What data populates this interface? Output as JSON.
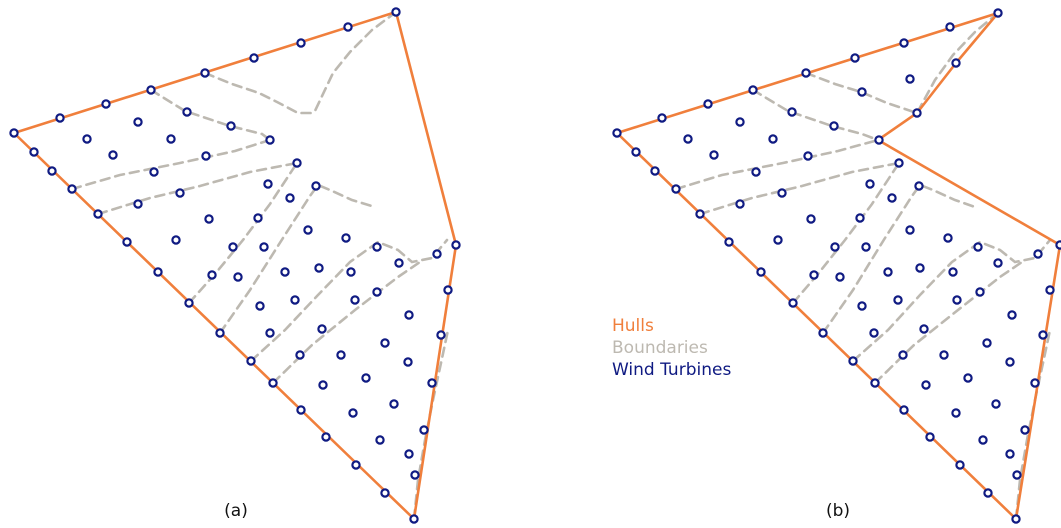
{
  "colors": {
    "hull": "#f07f3c",
    "boundary": "#bdb9b1",
    "turbine": "#0f1a82",
    "caption": "#111111"
  },
  "legend": {
    "hulls": "Hulls",
    "boundaries": "Boundaries",
    "wind_turbines": "Wind Turbines"
  },
  "panels": [
    {
      "caption": "(a)",
      "hull": [
        [
          14,
          133
        ],
        [
          396,
          12
        ],
        [
          456,
          245
        ],
        [
          414,
          519
        ],
        [
          14,
          133
        ]
      ],
      "hull_turbines": [
        [
          14,
          133
        ],
        [
          34,
          152
        ],
        [
          52,
          171
        ],
        [
          72,
          189
        ],
        [
          98,
          214
        ],
        [
          127,
          242
        ],
        [
          158,
          272
        ],
        [
          189,
          303
        ],
        [
          220,
          333
        ],
        [
          251,
          361
        ],
        [
          273,
          383
        ],
        [
          301,
          410
        ],
        [
          326,
          437
        ],
        [
          356,
          465
        ],
        [
          385,
          493
        ],
        [
          414,
          519
        ],
        [
          60,
          118
        ],
        [
          106,
          104
        ],
        [
          151,
          90
        ],
        [
          205,
          73
        ],
        [
          254,
          58
        ],
        [
          301,
          43
        ],
        [
          348,
          27
        ],
        [
          396,
          12
        ],
        [
          456,
          245
        ],
        [
          448,
          290
        ],
        [
          441,
          335
        ],
        [
          432,
          383
        ],
        [
          424,
          430
        ],
        [
          415,
          475
        ]
      ],
      "interior_turbines": [
        [
          87,
          139
        ],
        [
          138,
          122
        ],
        [
          113,
          155
        ],
        [
          187,
          112
        ],
        [
          231,
          126
        ],
        [
          171,
          139
        ],
        [
          206,
          156
        ],
        [
          154,
          172
        ],
        [
          270,
          140
        ],
        [
          180,
          193
        ],
        [
          138,
          204
        ],
        [
          268,
          184
        ],
        [
          297,
          163
        ],
        [
          209,
          219
        ],
        [
          176,
          240
        ],
        [
          258,
          218
        ],
        [
          290,
          198
        ],
        [
          316,
          186
        ],
        [
          233,
          247
        ],
        [
          212,
          275
        ],
        [
          264,
          247
        ],
        [
          238,
          277
        ],
        [
          308,
          230
        ],
        [
          260,
          306
        ],
        [
          285,
          272
        ],
        [
          346,
          238
        ],
        [
          319,
          268
        ],
        [
          377,
          247
        ],
        [
          399,
          263
        ],
        [
          437,
          254
        ],
        [
          295,
          300
        ],
        [
          351,
          272
        ],
        [
          377,
          292
        ],
        [
          322,
          329
        ],
        [
          355,
          300
        ],
        [
          409,
          315
        ],
        [
          300,
          355
        ],
        [
          341,
          355
        ],
        [
          385,
          343
        ],
        [
          270,
          333
        ],
        [
          323,
          385
        ],
        [
          366,
          378
        ],
        [
          408,
          362
        ],
        [
          353,
          413
        ],
        [
          394,
          404
        ],
        [
          380,
          440
        ],
        [
          409,
          454
        ]
      ],
      "boundaries": [
        [
          [
            396,
            12
          ],
          [
            372,
            30
          ],
          [
            350,
            52
          ],
          [
            333,
            73
          ],
          [
            314,
            113
          ]
        ],
        [
          [
            205,
            73
          ],
          [
            232,
            84
          ],
          [
            259,
            93
          ],
          [
            279,
            103
          ],
          [
            298,
            113
          ],
          [
            314,
            113
          ]
        ],
        [
          [
            151,
            90
          ],
          [
            185,
            111
          ],
          [
            230,
            126
          ],
          [
            262,
            134
          ],
          [
            270,
            140
          ]
        ],
        [
          [
            72,
            189
          ],
          [
            120,
            175
          ],
          [
            180,
            163
          ],
          [
            235,
            151
          ],
          [
            270,
            140
          ]
        ],
        [
          [
            98,
            214
          ],
          [
            150,
            198
          ],
          [
            200,
            186
          ],
          [
            250,
            172
          ],
          [
            297,
            163
          ]
        ],
        [
          [
            189,
            303
          ],
          [
            215,
            274
          ],
          [
            243,
            240
          ],
          [
            270,
            204
          ],
          [
            297,
            163
          ]
        ],
        [
          [
            220,
            333
          ],
          [
            250,
            290
          ],
          [
            283,
            238
          ],
          [
            310,
            196
          ],
          [
            318,
            185
          ],
          [
            330,
            190
          ],
          [
            352,
            200
          ],
          [
            375,
            207
          ]
        ],
        [
          [
            251,
            361
          ],
          [
            285,
            330
          ],
          [
            318,
            295
          ],
          [
            350,
            262
          ],
          [
            378,
            242
          ],
          [
            398,
            250
          ],
          [
            412,
            262
          ],
          [
            432,
            258
          ],
          [
            447,
            240
          ]
        ],
        [
          [
            273,
            383
          ],
          [
            312,
            345
          ],
          [
            355,
            310
          ],
          [
            398,
            277
          ],
          [
            420,
            262
          ]
        ],
        [
          [
            414,
            519
          ],
          [
            418,
            480
          ],
          [
            425,
            440
          ],
          [
            433,
            400
          ],
          [
            441,
            363
          ],
          [
            448,
            330
          ]
        ]
      ]
    },
    {
      "caption": "(b)",
      "hull": [
        [
          617,
          133
        ],
        [
          998,
          13
        ],
        [
          956,
          63
        ],
        [
          917,
          113
        ],
        [
          878,
          140
        ],
        [
          1060,
          245
        ],
        [
          1016,
          519
        ],
        [
          617,
          133
        ]
      ],
      "hull_turbines": [
        [
          617,
          133
        ],
        [
          636,
          152
        ],
        [
          655,
          171
        ],
        [
          676,
          189
        ],
        [
          700,
          214
        ],
        [
          729,
          242
        ],
        [
          761,
          272
        ],
        [
          793,
          303
        ],
        [
          823,
          333
        ],
        [
          853,
          361
        ],
        [
          875,
          383
        ],
        [
          904,
          410
        ],
        [
          930,
          437
        ],
        [
          960,
          465
        ],
        [
          988,
          493
        ],
        [
          1016,
          519
        ],
        [
          662,
          118
        ],
        [
          708,
          104
        ],
        [
          753,
          90
        ],
        [
          806,
          73
        ],
        [
          855,
          58
        ],
        [
          904,
          43
        ],
        [
          950,
          27
        ],
        [
          998,
          13
        ],
        [
          956,
          63
        ],
        [
          917,
          113
        ],
        [
          1060,
          245
        ],
        [
          1050,
          290
        ],
        [
          1043,
          335
        ],
        [
          1035,
          383
        ],
        [
          1025,
          430
        ],
        [
          1017,
          475
        ]
      ],
      "interior_turbines": [
        [
          688,
          139
        ],
        [
          740,
          122
        ],
        [
          714,
          155
        ],
        [
          792,
          112
        ],
        [
          834,
          126
        ],
        [
          773,
          139
        ],
        [
          808,
          156
        ],
        [
          756,
          172
        ],
        [
          910,
          79
        ],
        [
          862,
          92
        ],
        [
          879,
          140
        ],
        [
          782,
          193
        ],
        [
          740,
          204
        ],
        [
          870,
          184
        ],
        [
          899,
          163
        ],
        [
          811,
          219
        ],
        [
          778,
          240
        ],
        [
          860,
          218
        ],
        [
          892,
          198
        ],
        [
          919,
          186
        ],
        [
          835,
          247
        ],
        [
          814,
          275
        ],
        [
          866,
          247
        ],
        [
          840,
          277
        ],
        [
          910,
          230
        ],
        [
          862,
          306
        ],
        [
          888,
          272
        ],
        [
          948,
          238
        ],
        [
          920,
          268
        ],
        [
          978,
          247
        ],
        [
          998,
          263
        ],
        [
          1038,
          254
        ],
        [
          898,
          300
        ],
        [
          953,
          272
        ],
        [
          980,
          292
        ],
        [
          924,
          329
        ],
        [
          957,
          300
        ],
        [
          1012,
          315
        ],
        [
          903,
          355
        ],
        [
          944,
          355
        ],
        [
          987,
          343
        ],
        [
          874,
          333
        ],
        [
          926,
          385
        ],
        [
          968,
          378
        ],
        [
          1010,
          362
        ],
        [
          956,
          413
        ],
        [
          996,
          404
        ],
        [
          983,
          440
        ],
        [
          1010,
          454
        ]
      ],
      "boundaries": [
        [
          [
            998,
            13
          ],
          [
            975,
            32
          ],
          [
            953,
            55
          ],
          [
            935,
            80
          ],
          [
            917,
            113
          ]
        ],
        [
          [
            806,
            73
          ],
          [
            835,
            84
          ],
          [
            861,
            92
          ],
          [
            887,
            103
          ],
          [
            917,
            113
          ]
        ],
        [
          [
            753,
            90
          ],
          [
            788,
            111
          ],
          [
            832,
            126
          ],
          [
            862,
            134
          ],
          [
            878,
            140
          ]
        ],
        [
          [
            676,
            189
          ],
          [
            722,
            175
          ],
          [
            783,
            163
          ],
          [
            838,
            151
          ],
          [
            878,
            140
          ]
        ],
        [
          [
            700,
            214
          ],
          [
            752,
            198
          ],
          [
            802,
            186
          ],
          [
            852,
            172
          ],
          [
            899,
            163
          ]
        ],
        [
          [
            793,
            303
          ],
          [
            818,
            274
          ],
          [
            845,
            240
          ],
          [
            872,
            204
          ],
          [
            899,
            163
          ]
        ],
        [
          [
            823,
            333
          ],
          [
            853,
            290
          ],
          [
            885,
            238
          ],
          [
            912,
            196
          ],
          [
            920,
            185
          ],
          [
            933,
            190
          ],
          [
            955,
            200
          ],
          [
            975,
            207
          ]
        ],
        [
          [
            853,
            361
          ],
          [
            888,
            330
          ],
          [
            920,
            295
          ],
          [
            952,
            262
          ],
          [
            980,
            242
          ],
          [
            1000,
            250
          ],
          [
            1015,
            262
          ],
          [
            1035,
            258
          ],
          [
            1050,
            240
          ]
        ],
        [
          [
            875,
            383
          ],
          [
            914,
            345
          ],
          [
            958,
            310
          ],
          [
            1000,
            277
          ],
          [
            1022,
            262
          ]
        ],
        [
          [
            1016,
            519
          ],
          [
            1020,
            480
          ],
          [
            1027,
            440
          ],
          [
            1035,
            400
          ],
          [
            1043,
            363
          ],
          [
            1050,
            330
          ]
        ]
      ]
    }
  ]
}
